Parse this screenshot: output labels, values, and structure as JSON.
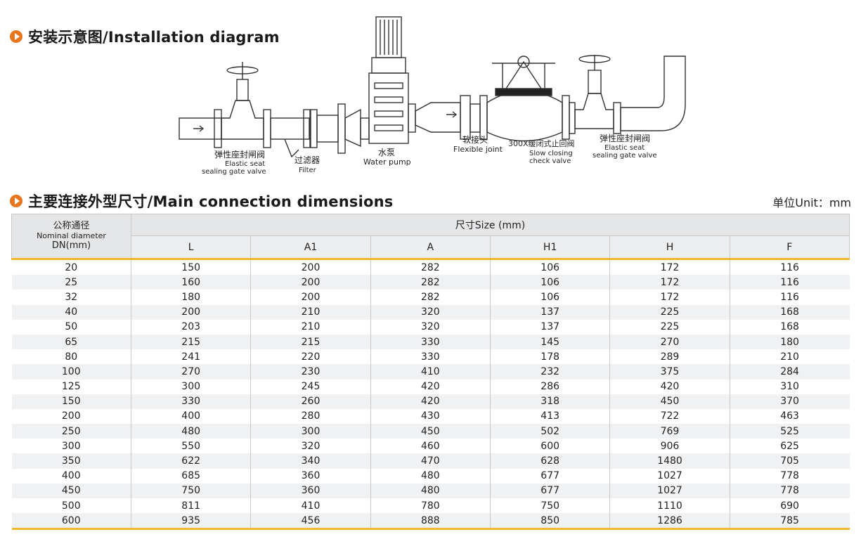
{
  "sections": {
    "installation_title": "安装示意图/Installation diagram",
    "dimensions_title": "主要连接外型尺寸/Main connection dimensions",
    "unit": "单位Unit：mm"
  },
  "diagram": {
    "gate_valve_left": {
      "zh": "弹性座封闸阀",
      "en1": "Elastic seat",
      "en2": "sealing gate valve"
    },
    "filter": {
      "zh": "过滤器",
      "en": "Filter"
    },
    "pump": {
      "zh": "水泵",
      "en": "Water pump"
    },
    "flexible_joint": {
      "zh": "软接头",
      "en": "Flexible joint"
    },
    "check_valve": {
      "zh": "300X缓闭式止回阀",
      "en1": "Slow closing",
      "en2": "check valve"
    },
    "gate_valve_right": {
      "zh": "弹性座封闸阀",
      "en1": "Elastic seat",
      "en2": "sealing gate valve"
    }
  },
  "table": {
    "dn_header": {
      "zh": "公称通径",
      "en": "Nominal diameter",
      "unit": "DN(mm)"
    },
    "size_header": "尺寸Size (mm)",
    "columns": [
      "L",
      "A1",
      "A",
      "H1",
      "H",
      "F"
    ],
    "rows": [
      [
        "20",
        "150",
        "200",
        "282",
        "106",
        "172",
        "116"
      ],
      [
        "25",
        "160",
        "200",
        "282",
        "106",
        "172",
        "116"
      ],
      [
        "32",
        "180",
        "200",
        "282",
        "106",
        "172",
        "116"
      ],
      [
        "40",
        "200",
        "210",
        "320",
        "137",
        "225",
        "168"
      ],
      [
        "50",
        "203",
        "210",
        "320",
        "137",
        "225",
        "168"
      ],
      [
        "65",
        "215",
        "215",
        "330",
        "145",
        "270",
        "180"
      ],
      [
        "80",
        "241",
        "220",
        "330",
        "178",
        "289",
        "210"
      ],
      [
        "100",
        "270",
        "230",
        "410",
        "232",
        "375",
        "284"
      ],
      [
        "125",
        "300",
        "245",
        "420",
        "286",
        "420",
        "310"
      ],
      [
        "150",
        "330",
        "260",
        "420",
        "318",
        "450",
        "370"
      ],
      [
        "200",
        "400",
        "280",
        "430",
        "413",
        "722",
        "463"
      ],
      [
        "250",
        "480",
        "300",
        "450",
        "502",
        "769",
        "525"
      ],
      [
        "300",
        "550",
        "320",
        "460",
        "600",
        "906",
        "625"
      ],
      [
        "350",
        "622",
        "340",
        "470",
        "628",
        "1480",
        "705"
      ],
      [
        "400",
        "685",
        "360",
        "480",
        "677",
        "1027",
        "778"
      ],
      [
        "450",
        "750",
        "360",
        "480",
        "677",
        "1027",
        "778"
      ],
      [
        "500",
        "811",
        "410",
        "780",
        "750",
        "1110",
        "690"
      ],
      [
        "600",
        "935",
        "456",
        "888",
        "850",
        "1286",
        "785"
      ]
    ]
  }
}
